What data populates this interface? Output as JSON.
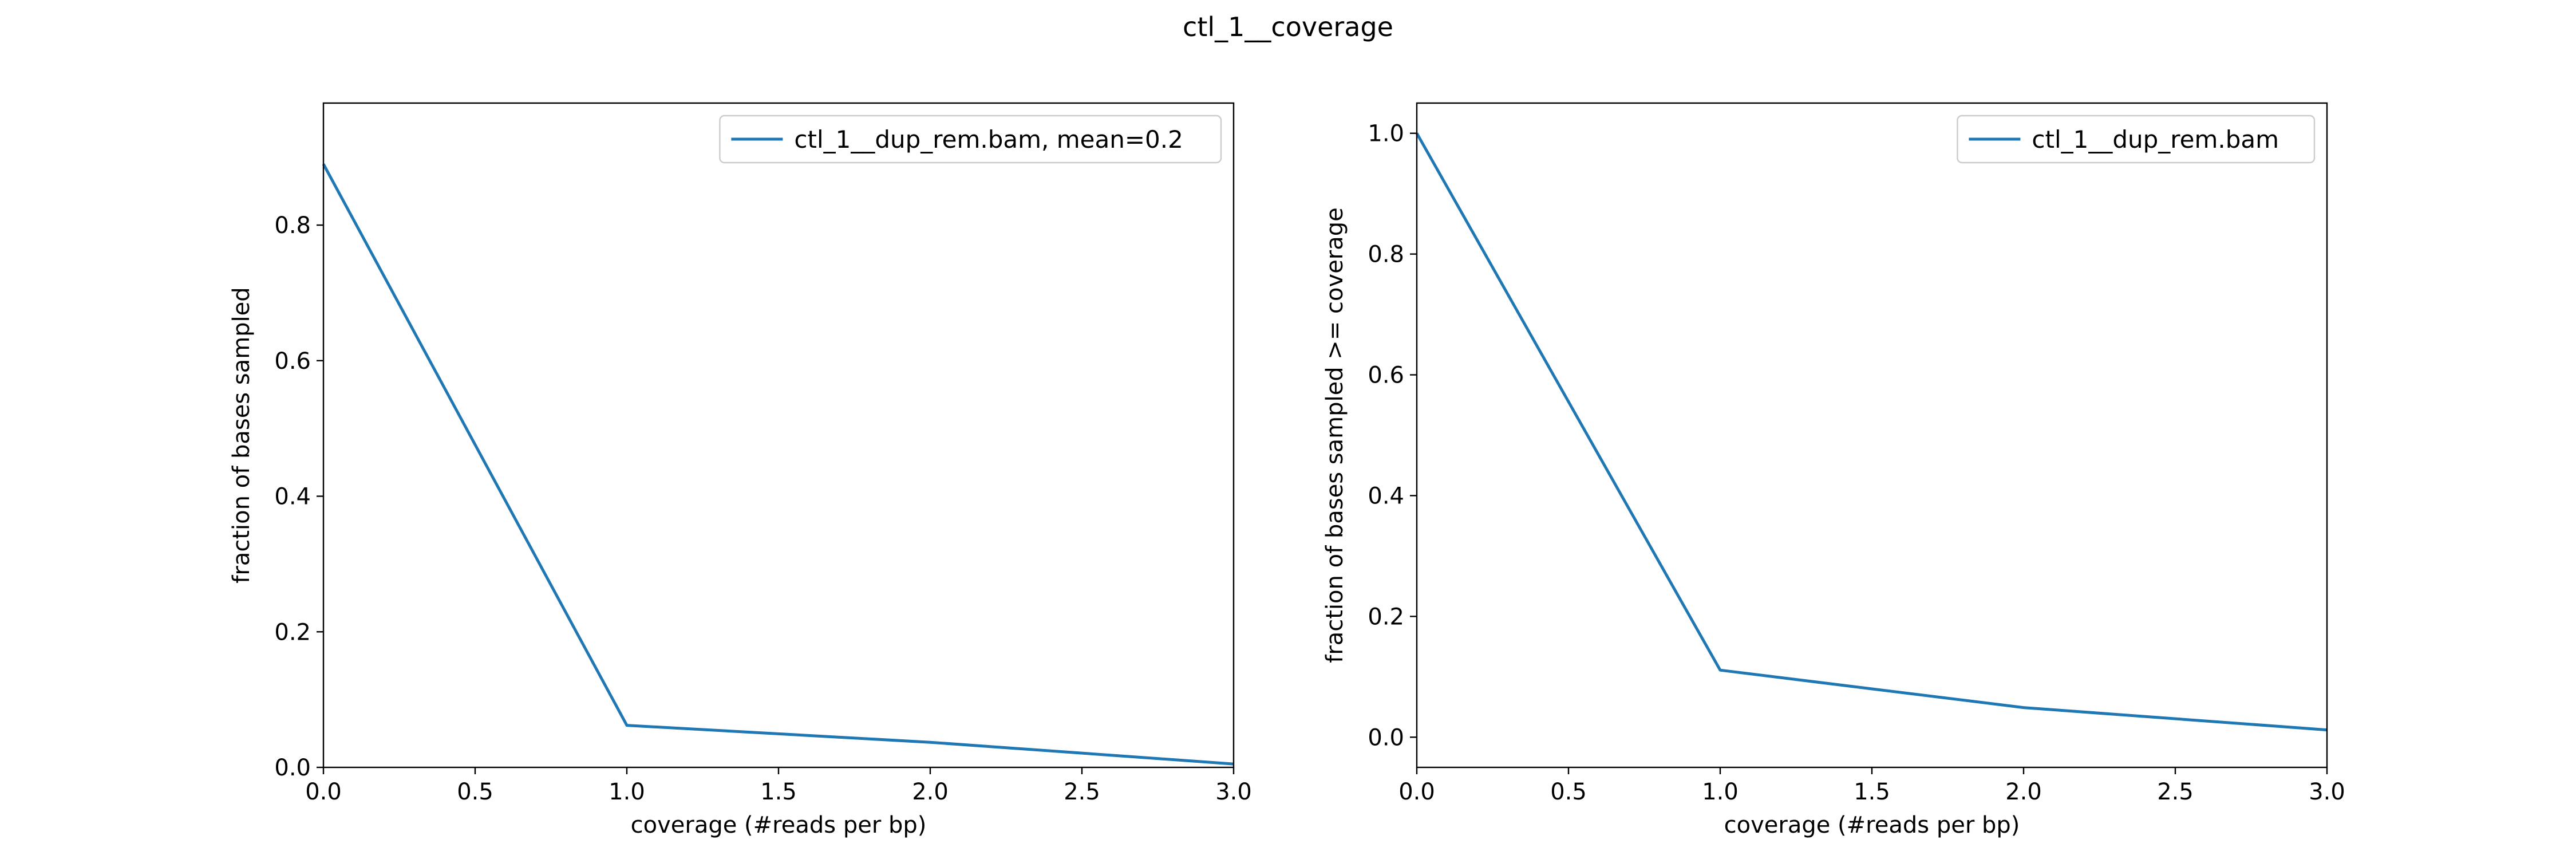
{
  "figure": {
    "title": "ctl_1__coverage"
  },
  "chart_data": [
    {
      "type": "line",
      "title": "",
      "xlabel": "coverage (#reads per bp)",
      "ylabel": "fraction of bases sampled",
      "xlim": [
        0,
        3
      ],
      "ylim": [
        0,
        0.98
      ],
      "xticks": [
        "0.0",
        "0.5",
        "1.0",
        "1.5",
        "2.0",
        "2.5",
        "3.0"
      ],
      "yticks": [
        "0.0",
        "0.2",
        "0.4",
        "0.6",
        "0.8"
      ],
      "grid": false,
      "legend_position": "upper right",
      "series": [
        {
          "name": "ctl_1__dup_rem.bam, mean=0.2",
          "color": "#1f77b4",
          "x": [
            0,
            1,
            2,
            3
          ],
          "y": [
            0.89,
            0.062,
            0.037,
            0.005
          ]
        }
      ]
    },
    {
      "type": "line",
      "title": "",
      "xlabel": "coverage (#reads per bp)",
      "ylabel": "fraction of bases sampled >= coverage",
      "xlim": [
        0,
        3
      ],
      "ylim": [
        -0.05,
        1.05
      ],
      "xticks": [
        "0.0",
        "0.5",
        "1.0",
        "1.5",
        "2.0",
        "2.5",
        "3.0"
      ],
      "yticks": [
        "0.0",
        "0.2",
        "0.4",
        "0.6",
        "0.8",
        "1.0"
      ],
      "grid": false,
      "legend_position": "upper right",
      "series": [
        {
          "name": "ctl_1__dup_rem.bam",
          "color": "#1f77b4",
          "x": [
            0,
            1,
            2,
            3
          ],
          "y": [
            1.0,
            0.111,
            0.049,
            0.012
          ]
        }
      ]
    }
  ]
}
